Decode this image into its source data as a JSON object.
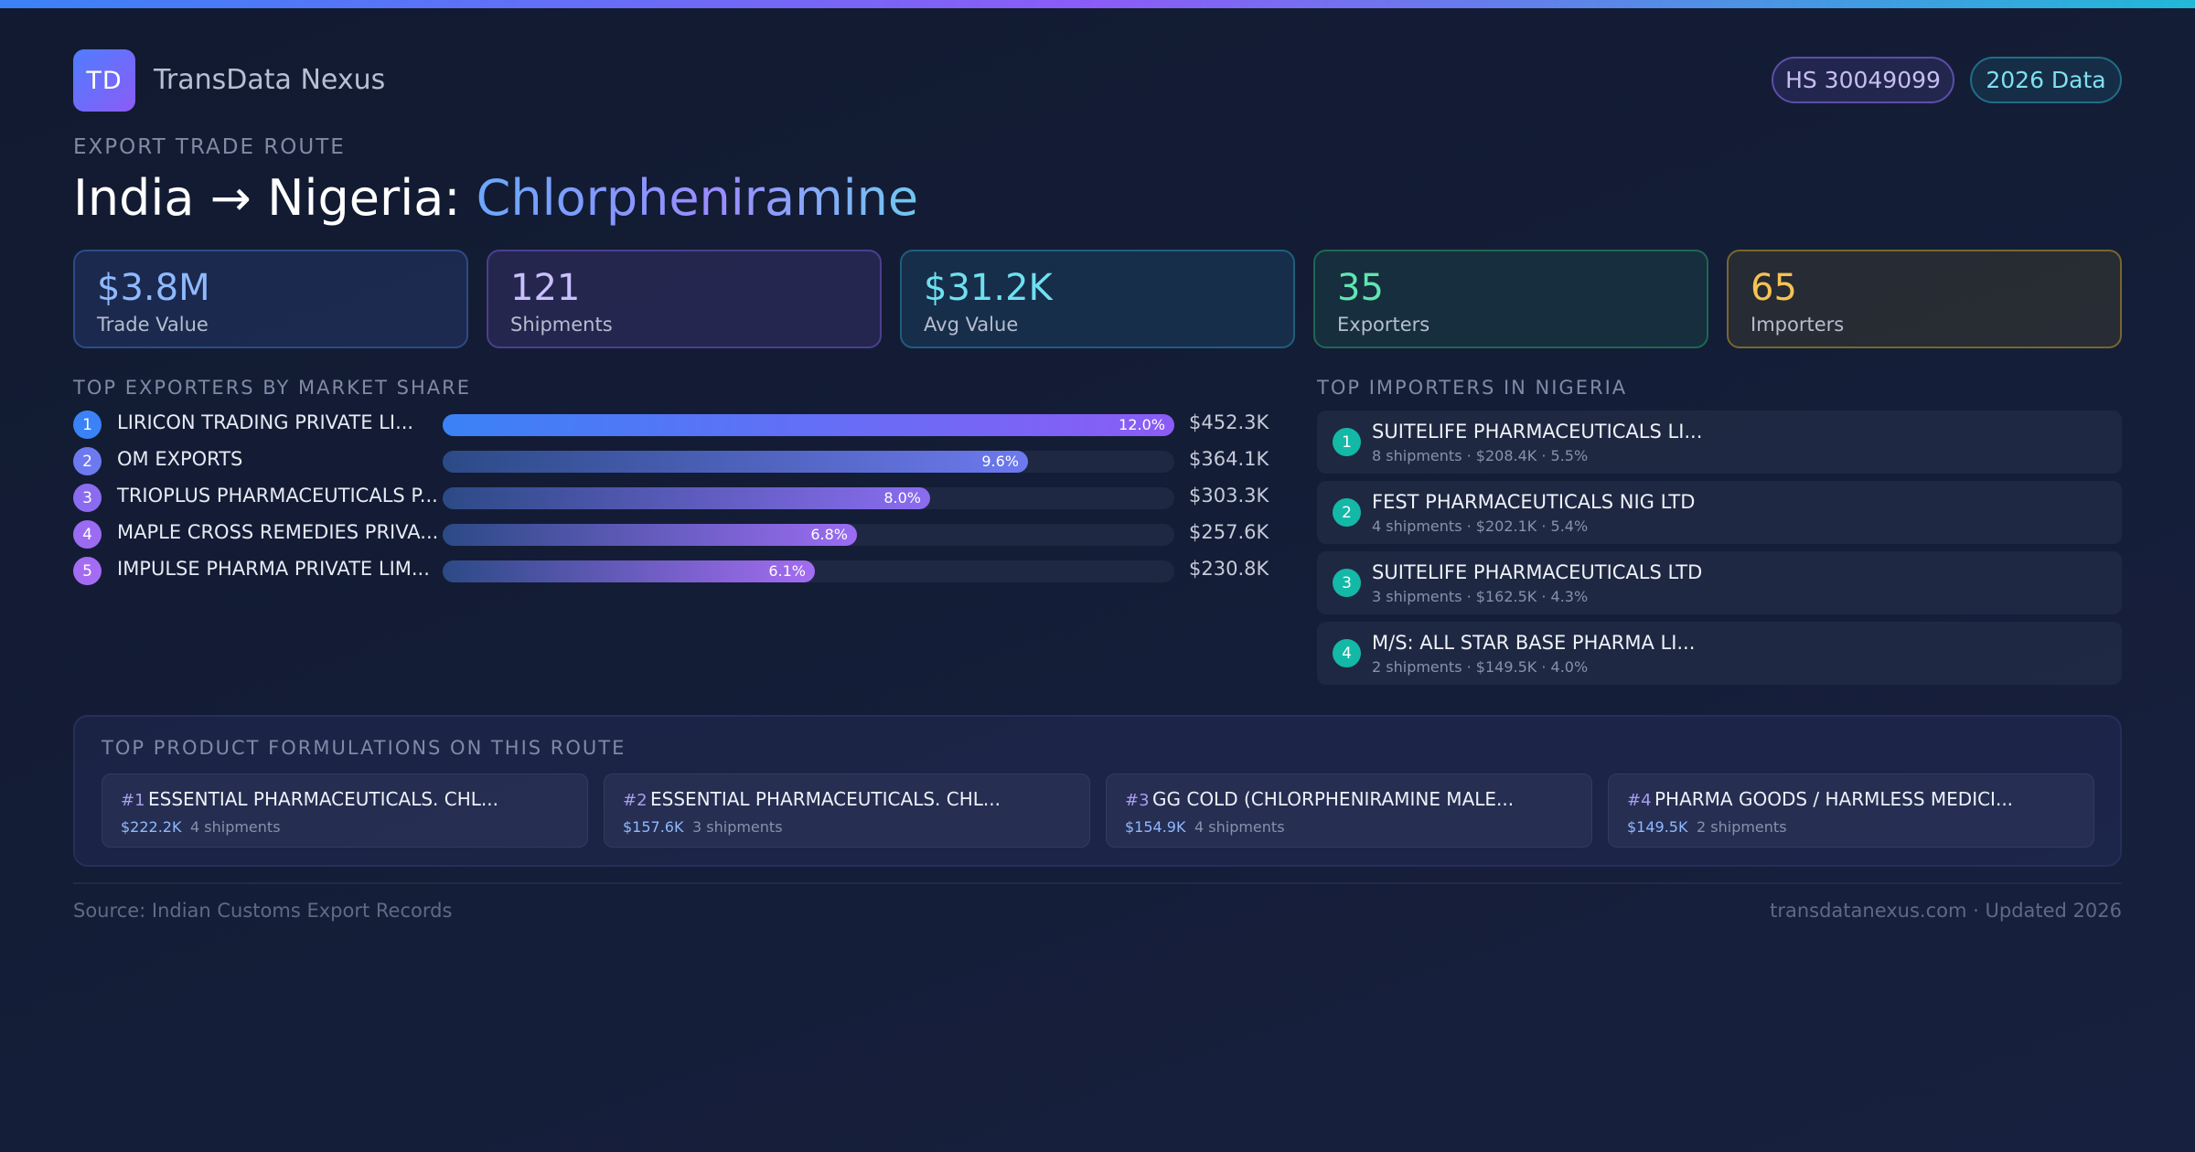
{
  "brand": {
    "logo_text": "TD",
    "name": "TransData Nexus"
  },
  "badges": {
    "hs_code": "HS 30049099",
    "data_year": "2026 Data"
  },
  "header": {
    "eyebrow": "EXPORT TRADE ROUTE",
    "route": "India → Nigeria: ",
    "product": "Chlorpheniramine"
  },
  "stats": [
    {
      "value": "$3.8M",
      "label": "Trade Value"
    },
    {
      "value": "121",
      "label": "Shipments"
    },
    {
      "value": "$31.2K",
      "label": "Avg Value"
    },
    {
      "value": "35",
      "label": "Exporters"
    },
    {
      "value": "65",
      "label": "Importers"
    }
  ],
  "exporters": {
    "title": "TOP EXPORTERS BY MARKET SHARE",
    "items": [
      {
        "rank": "1",
        "name": "LIRICON TRADING PRIVATE LI...",
        "share_label": "12.0%",
        "share": 12.0,
        "value": "$452.3K",
        "color": "#3b82f6"
      },
      {
        "rank": "2",
        "name": "OM EXPORTS",
        "share_label": "9.6%",
        "share": 9.6,
        "value": "$364.1K",
        "color": "#6d79ee"
      },
      {
        "rank": "3",
        "name": "TRIOPLUS PHARMACEUTICALS P...",
        "share_label": "8.0%",
        "share": 8.0,
        "value": "$303.3K",
        "color": "#8b6cf0"
      },
      {
        "rank": "4",
        "name": "MAPLE CROSS REMEDIES PRIVA...",
        "share_label": "6.8%",
        "share": 6.8,
        "value": "$257.6K",
        "color": "#9b6cf2"
      },
      {
        "rank": "5",
        "name": "IMPULSE PHARMA PRIVATE LIM...",
        "share_label": "6.1%",
        "share": 6.1,
        "value": "$230.8K",
        "color": "#a46cf2"
      }
    ]
  },
  "importers": {
    "title": "TOP IMPORTERS IN NIGERIA",
    "items": [
      {
        "rank": "1",
        "name": "SUITELIFE PHARMACEUTICALS LI...",
        "meta": "8 shipments · $208.4K · 5.5%"
      },
      {
        "rank": "2",
        "name": "FEST PHARMACEUTICALS NIG LTD",
        "meta": "4 shipments · $202.1K · 5.4%"
      },
      {
        "rank": "3",
        "name": "SUITELIFE PHARMACEUTICALS LTD",
        "meta": "3 shipments · $162.5K · 4.3%"
      },
      {
        "rank": "4",
        "name": "M/S: ALL STAR BASE PHARMA LI...",
        "meta": "2 shipments · $149.5K · 4.0%"
      }
    ]
  },
  "formulations": {
    "title": "TOP PRODUCT FORMULATIONS ON THIS ROUTE",
    "items": [
      {
        "num": "#1",
        "name": "ESSENTIAL PHARMACEUTICALS. CHL...",
        "value": "$222.2K",
        "shipments": "4 shipments"
      },
      {
        "num": "#2",
        "name": "ESSENTIAL PHARMACEUTICALS. CHL...",
        "value": "$157.6K",
        "shipments": "3 shipments"
      },
      {
        "num": "#3",
        "name": "GG COLD (CHLORPHENIRAMINE MALE...",
        "value": "$154.9K",
        "shipments": "4 shipments"
      },
      {
        "num": "#4",
        "name": "PHARMA GOODS / HARMLESS MEDICI...",
        "value": "$149.5K",
        "shipments": "2 shipments"
      }
    ]
  },
  "footer": {
    "source": "Source: Indian Customs Export Records",
    "site": "transdatanexus.com · Updated 2026"
  }
}
